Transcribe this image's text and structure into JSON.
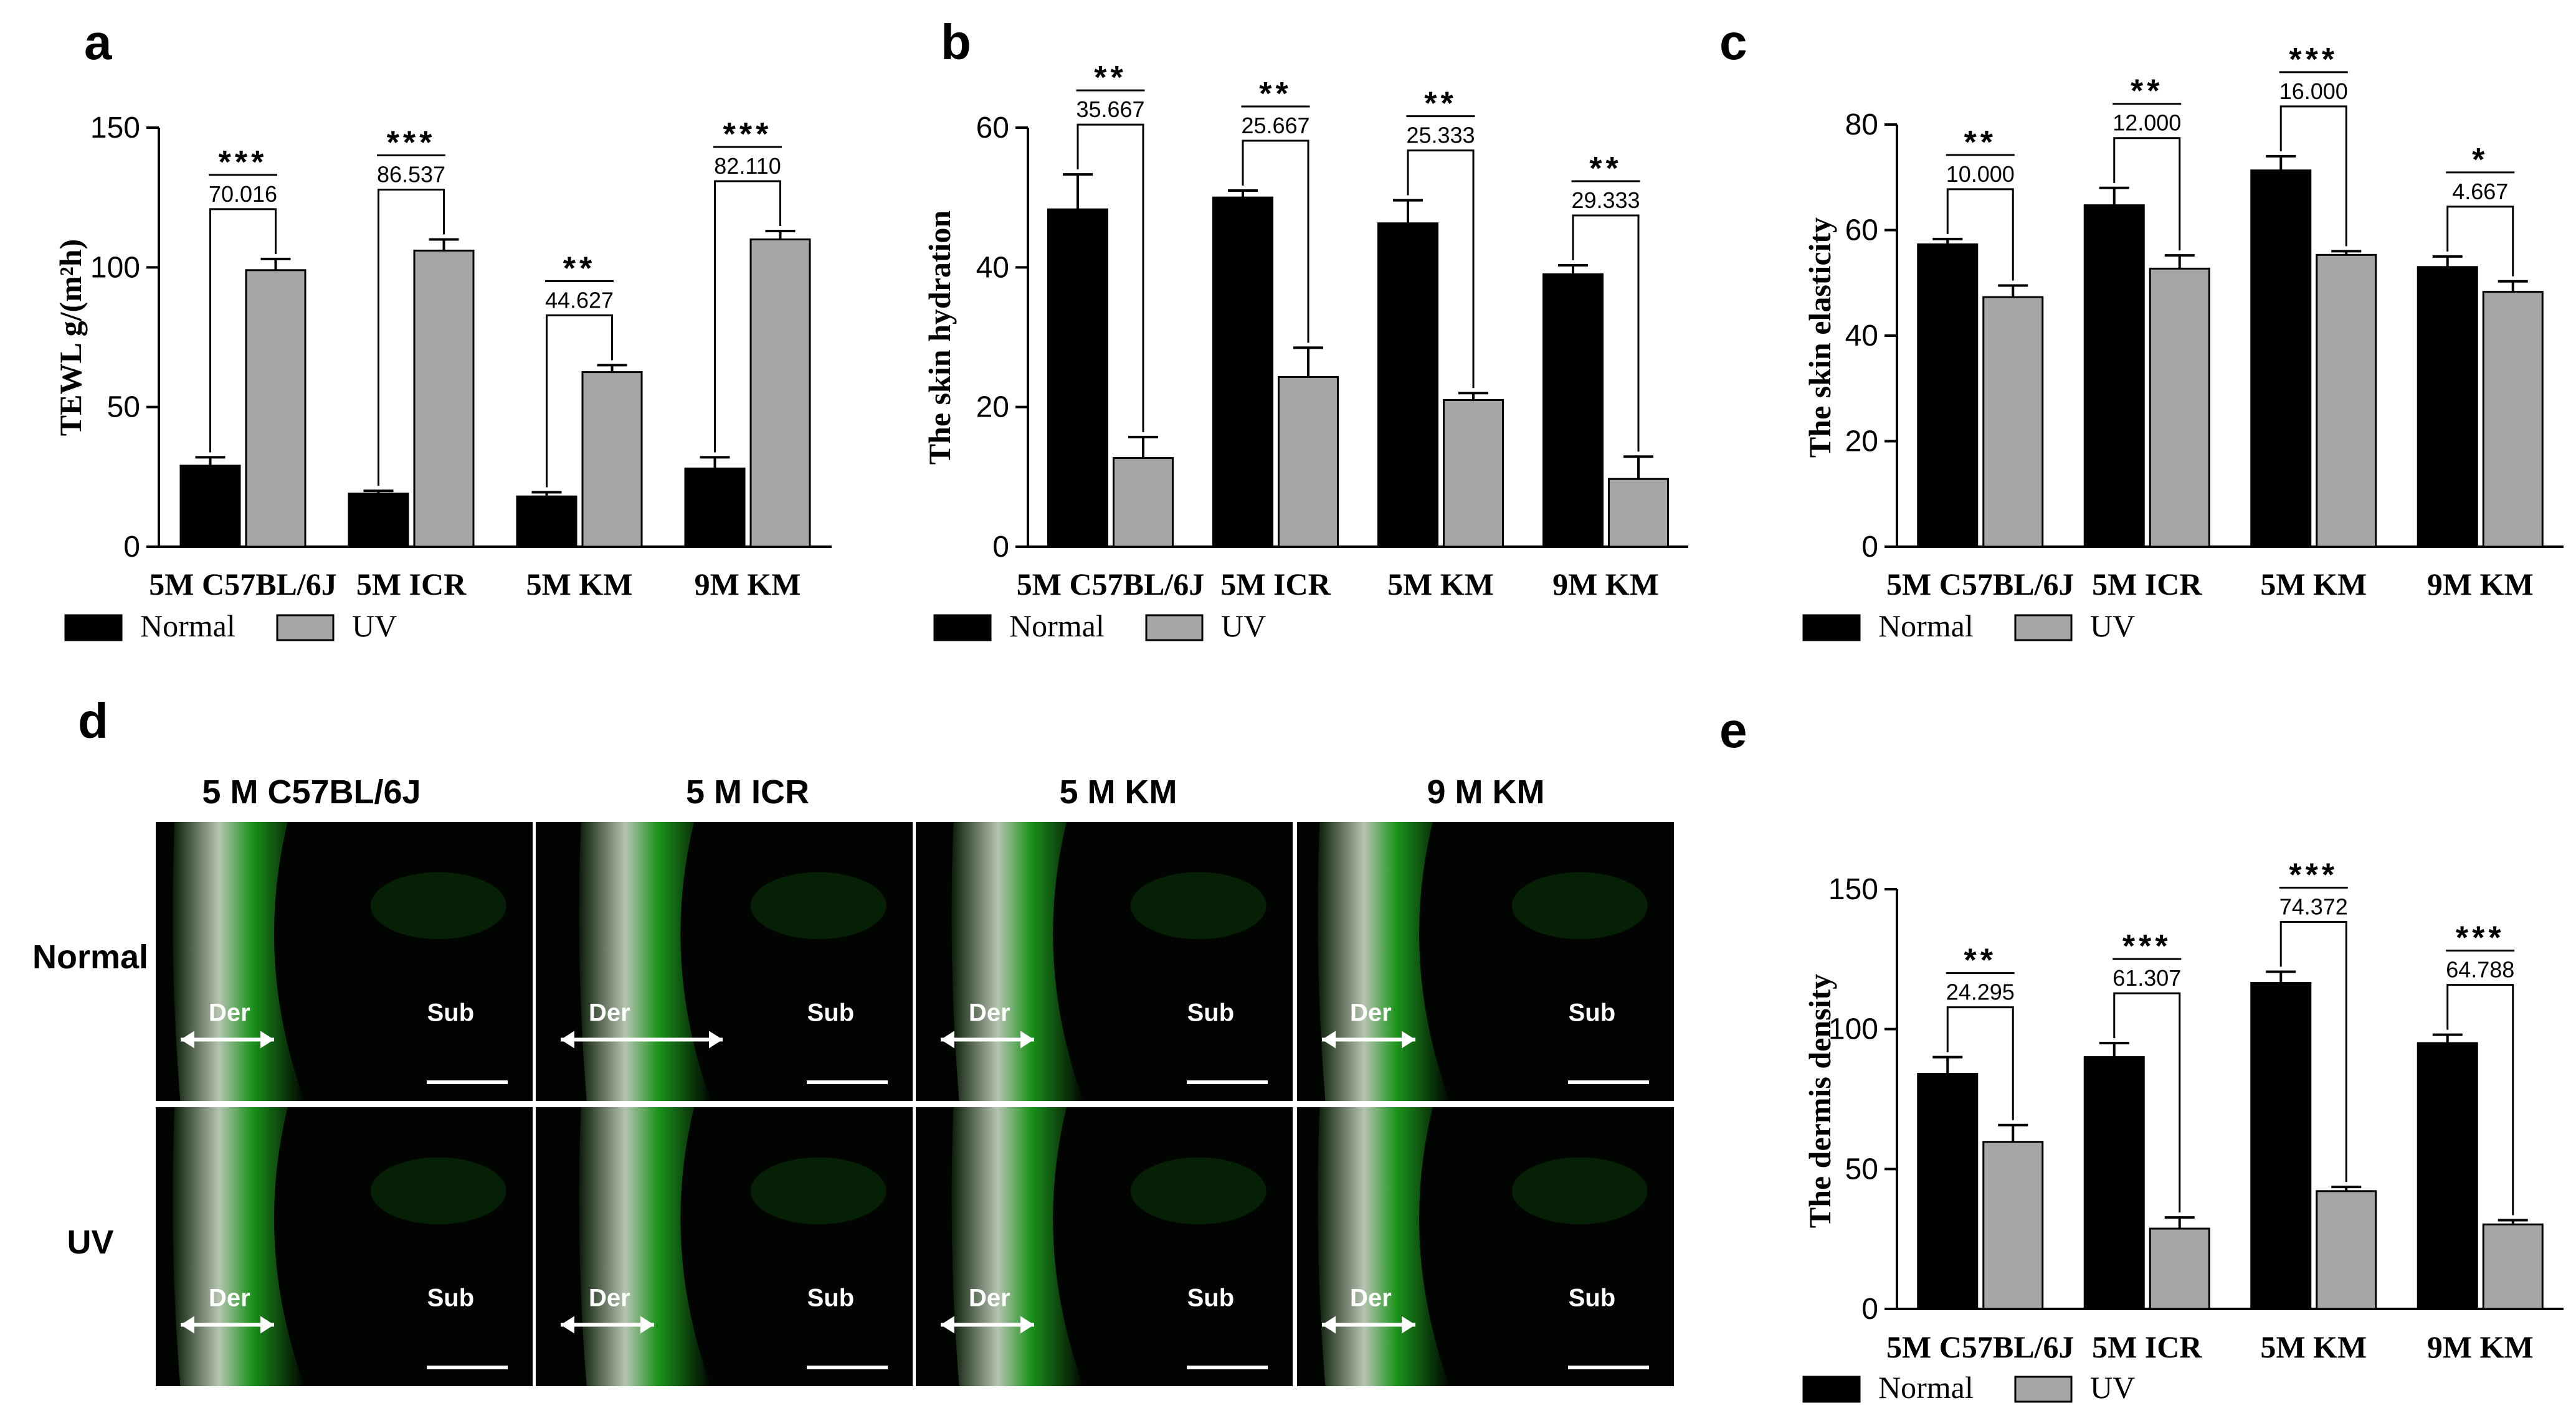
{
  "panel_letters": [
    "a",
    "b",
    "c",
    "d",
    "e"
  ],
  "legend": {
    "normal": "Normal",
    "uv": "UV"
  },
  "colors": {
    "normal": "#000000",
    "uv": "#a6a6a6",
    "tissue": "#1ea31e",
    "background": "#ffffff"
  },
  "chart_data": [
    {
      "id": "a",
      "type": "bar",
      "categories": [
        "5M C57BL/6J",
        "5M ICR",
        "5M KM",
        "9M KM"
      ],
      "ylabel": "TEWL g/(m²h)",
      "ylim": [
        0,
        150
      ],
      "yticks": [
        0,
        50,
        100,
        150
      ],
      "series": [
        {
          "name": "Normal",
          "values": [
            29,
            19,
            18,
            28
          ],
          "errors": [
            3,
            1,
            1.5,
            4
          ]
        },
        {
          "name": "UV",
          "values": [
            99,
            106,
            62.5,
            110
          ],
          "errors": [
            4,
            4,
            2.5,
            3
          ]
        }
      ],
      "comparisons": [
        {
          "stars": "***",
          "diff": "70.016"
        },
        {
          "stars": "***",
          "diff": "86.537"
        },
        {
          "stars": "**",
          "diff": "44.627"
        },
        {
          "stars": "***",
          "diff": "82.110"
        }
      ]
    },
    {
      "id": "b",
      "type": "bar",
      "categories": [
        "5M C57BL/6J",
        "5M ICR",
        "5M KM",
        "9M KM"
      ],
      "ylabel": "The skin hydration",
      "ylim": [
        0,
        60
      ],
      "yticks": [
        0,
        20,
        40,
        60
      ],
      "series": [
        {
          "name": "Normal",
          "values": [
            48.3,
            50,
            46.3,
            39
          ],
          "errors": [
            5,
            1,
            3.3,
            1.3
          ]
        },
        {
          "name": "UV",
          "values": [
            12.7,
            24.3,
            21,
            9.7
          ],
          "errors": [
            3,
            4.2,
            1,
            3.2
          ]
        }
      ],
      "comparisons": [
        {
          "stars": "**",
          "diff": "35.667"
        },
        {
          "stars": "**",
          "diff": "25.667"
        },
        {
          "stars": "**",
          "diff": "25.333"
        },
        {
          "stars": "**",
          "diff": "29.333"
        }
      ]
    },
    {
      "id": "c",
      "type": "bar",
      "categories": [
        "5M C57BL/6J",
        "5M ICR",
        "5M KM",
        "9M KM"
      ],
      "ylabel": "The skin elasticity",
      "ylim": [
        0,
        80
      ],
      "yticks": [
        0,
        20,
        40,
        60,
        80
      ],
      "series": [
        {
          "name": "Normal",
          "values": [
            57.3,
            64.7,
            71.3,
            53
          ],
          "errors": [
            1,
            3.3,
            2.7,
            2
          ]
        },
        {
          "name": "UV",
          "values": [
            47.3,
            52.7,
            55.3,
            48.3
          ],
          "errors": [
            2.2,
            2.5,
            0.7,
            2
          ]
        }
      ],
      "comparisons": [
        {
          "stars": "**",
          "diff": "10.000"
        },
        {
          "stars": "**",
          "diff": "12.000"
        },
        {
          "stars": "***",
          "diff": "16.000"
        },
        {
          "stars": "*",
          "diff": "4.667"
        }
      ]
    },
    {
      "id": "e",
      "type": "bar",
      "categories": [
        "5M C57BL/6J",
        "5M ICR",
        "5M KM",
        "9M KM"
      ],
      "ylabel": "The dermis density",
      "ylim": [
        0,
        150
      ],
      "yticks": [
        0,
        50,
        100,
        150
      ],
      "series": [
        {
          "name": "Normal",
          "values": [
            84,
            90,
            116.5,
            95
          ],
          "errors": [
            6,
            5,
            4,
            3
          ]
        },
        {
          "name": "UV",
          "values": [
            59.7,
            28.7,
            42.1,
            30.2
          ],
          "errors": [
            6,
            4,
            1.5,
            1.5
          ]
        }
      ],
      "comparisons": [
        {
          "stars": "**",
          "diff": "24.295"
        },
        {
          "stars": "***",
          "diff": "61.307"
        },
        {
          "stars": "***",
          "diff": "74.372"
        },
        {
          "stars": "***",
          "diff": "64.788"
        }
      ]
    }
  ],
  "images": {
    "columns": [
      "5 M C57BL/6J",
      "5 M ICR",
      "5 M KM",
      "9 M KM"
    ],
    "rows": [
      "Normal",
      "UV"
    ],
    "label_der": "Der",
    "label_sub": "Sub"
  }
}
